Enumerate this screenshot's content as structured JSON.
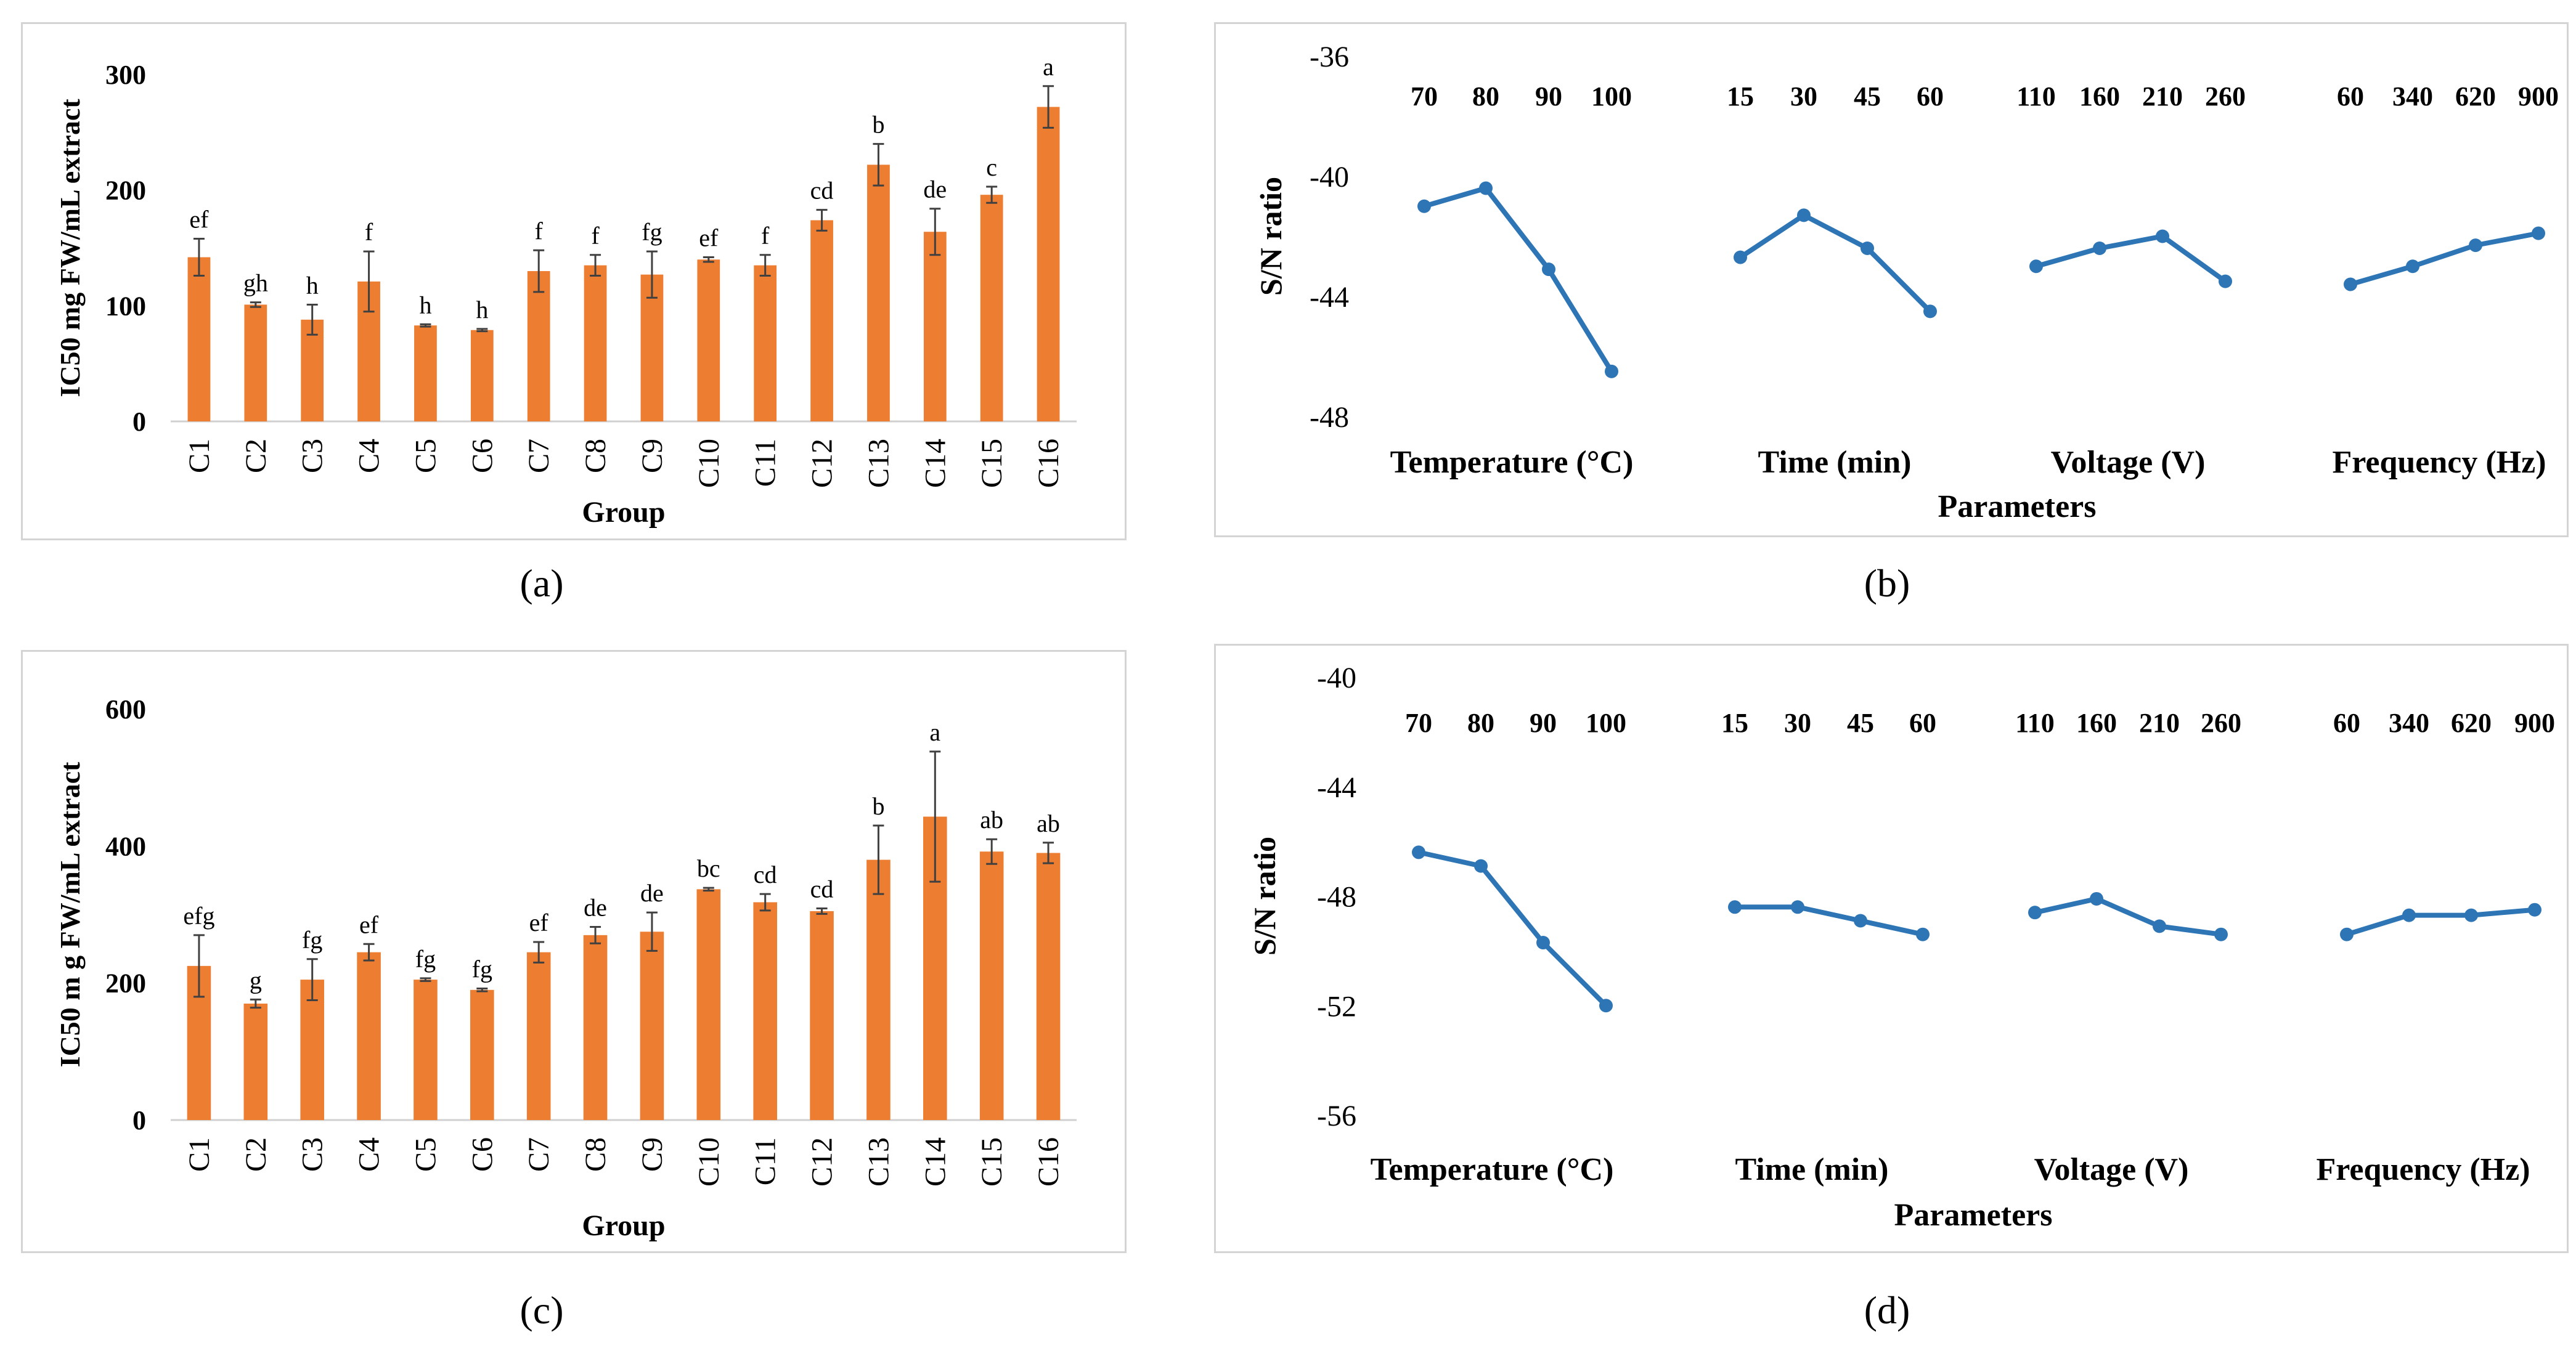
{
  "captions": [
    "(a)",
    "(b)",
    "(c)",
    "(d)"
  ],
  "colors": {
    "bar": "#ED7D31",
    "line": "#2E75B6",
    "error": "#404040",
    "axis": "#d0d0d0"
  },
  "chart_data": [
    {
      "type": "bar",
      "caption": "(a)",
      "xlabel": "Group",
      "ylabel": "IC50 mg FW/mL extract",
      "ylim": [
        0,
        300
      ],
      "yticks": [
        0,
        100,
        200,
        300
      ],
      "categories": [
        "C1",
        "C2",
        "C3",
        "C4",
        "C5",
        "C6",
        "C7",
        "C8",
        "C9",
        "C10",
        "C11",
        "C12",
        "C13",
        "C14",
        "C15",
        "C16"
      ],
      "values": [
        142,
        101,
        88,
        121,
        83,
        79,
        130,
        135,
        127,
        140,
        135,
        174,
        222,
        164,
        196,
        272
      ],
      "errors": [
        16,
        2,
        13,
        26,
        1,
        1,
        18,
        9,
        20,
        2,
        9,
        9,
        18,
        20,
        7,
        18
      ],
      "letters": [
        "ef",
        "gh",
        "h",
        "f",
        "h",
        "h",
        "f",
        "f",
        "fg",
        "ef",
        "f",
        "cd",
        "b",
        "de",
        "c",
        "a"
      ]
    },
    {
      "type": "line",
      "caption": "(b)",
      "xlabel": "Parameters",
      "ylabel": "S/N ratio",
      "ylim": [
        -48,
        -36
      ],
      "yticks": [
        -36,
        -40,
        -44,
        -48
      ],
      "groups": [
        {
          "name": "Temperature (°C)",
          "levels": [
            "70",
            "80",
            "90",
            "100"
          ],
          "values": [
            -41.0,
            -40.4,
            -43.1,
            -46.5
          ]
        },
        {
          "name": "Time (min)",
          "levels": [
            "15",
            "30",
            "45",
            "60"
          ],
          "values": [
            -42.7,
            -41.3,
            -42.4,
            -44.5
          ]
        },
        {
          "name": "Voltage (V)",
          "levels": [
            "110",
            "160",
            "210",
            "260"
          ],
          "values": [
            -43.0,
            -42.4,
            -42.0,
            -43.5
          ]
        },
        {
          "name": "Frequency (Hz)",
          "levels": [
            "60",
            "340",
            "620",
            "900"
          ],
          "values": [
            -43.6,
            -43.0,
            -42.3,
            -41.9
          ]
        }
      ]
    },
    {
      "type": "bar",
      "caption": "(c)",
      "xlabel": "Group",
      "ylabel": "IC50 m g FW/mL extract",
      "ylim": [
        0,
        600
      ],
      "yticks": [
        0,
        200,
        400,
        600
      ],
      "categories": [
        "C1",
        "C2",
        "C3",
        "C4",
        "C5",
        "C6",
        "C7",
        "C8",
        "C9",
        "C10",
        "C11",
        "C12",
        "C13",
        "C14",
        "C15",
        "C16"
      ],
      "values": [
        225,
        170,
        205,
        245,
        205,
        190,
        245,
        270,
        275,
        337,
        318,
        305,
        380,
        443,
        392,
        390
      ],
      "errors": [
        45,
        6,
        30,
        12,
        2,
        2,
        15,
        12,
        28,
        2,
        12,
        4,
        50,
        95,
        18,
        15
      ],
      "letters": [
        "efg",
        "g",
        "fg",
        "ef",
        "fg",
        "fg",
        "ef",
        "de",
        "de",
        "bc",
        "cd",
        "cd",
        "b",
        "a",
        "ab",
        "ab"
      ]
    },
    {
      "type": "line",
      "caption": "(d)",
      "xlabel": "Parameters",
      "ylabel": "S/N ratio",
      "ylim": [
        -56,
        -40
      ],
      "yticks": [
        -40,
        -44,
        -48,
        -52,
        -56
      ],
      "groups": [
        {
          "name": "Temperature (°C)",
          "levels": [
            "70",
            "80",
            "90",
            "100"
          ],
          "values": [
            -46.4,
            -46.9,
            -49.7,
            -52.0
          ]
        },
        {
          "name": "Time (min)",
          "levels": [
            "15",
            "30",
            "45",
            "60"
          ],
          "values": [
            -48.4,
            -48.4,
            -48.9,
            -49.4
          ]
        },
        {
          "name": "Voltage (V)",
          "levels": [
            "110",
            "160",
            "210",
            "260"
          ],
          "values": [
            -48.6,
            -48.1,
            -49.1,
            -49.4
          ]
        },
        {
          "name": "Frequency (Hz)",
          "levels": [
            "60",
            "340",
            "620",
            "900"
          ],
          "values": [
            -49.4,
            -48.7,
            -48.7,
            -48.5
          ]
        }
      ]
    }
  ]
}
